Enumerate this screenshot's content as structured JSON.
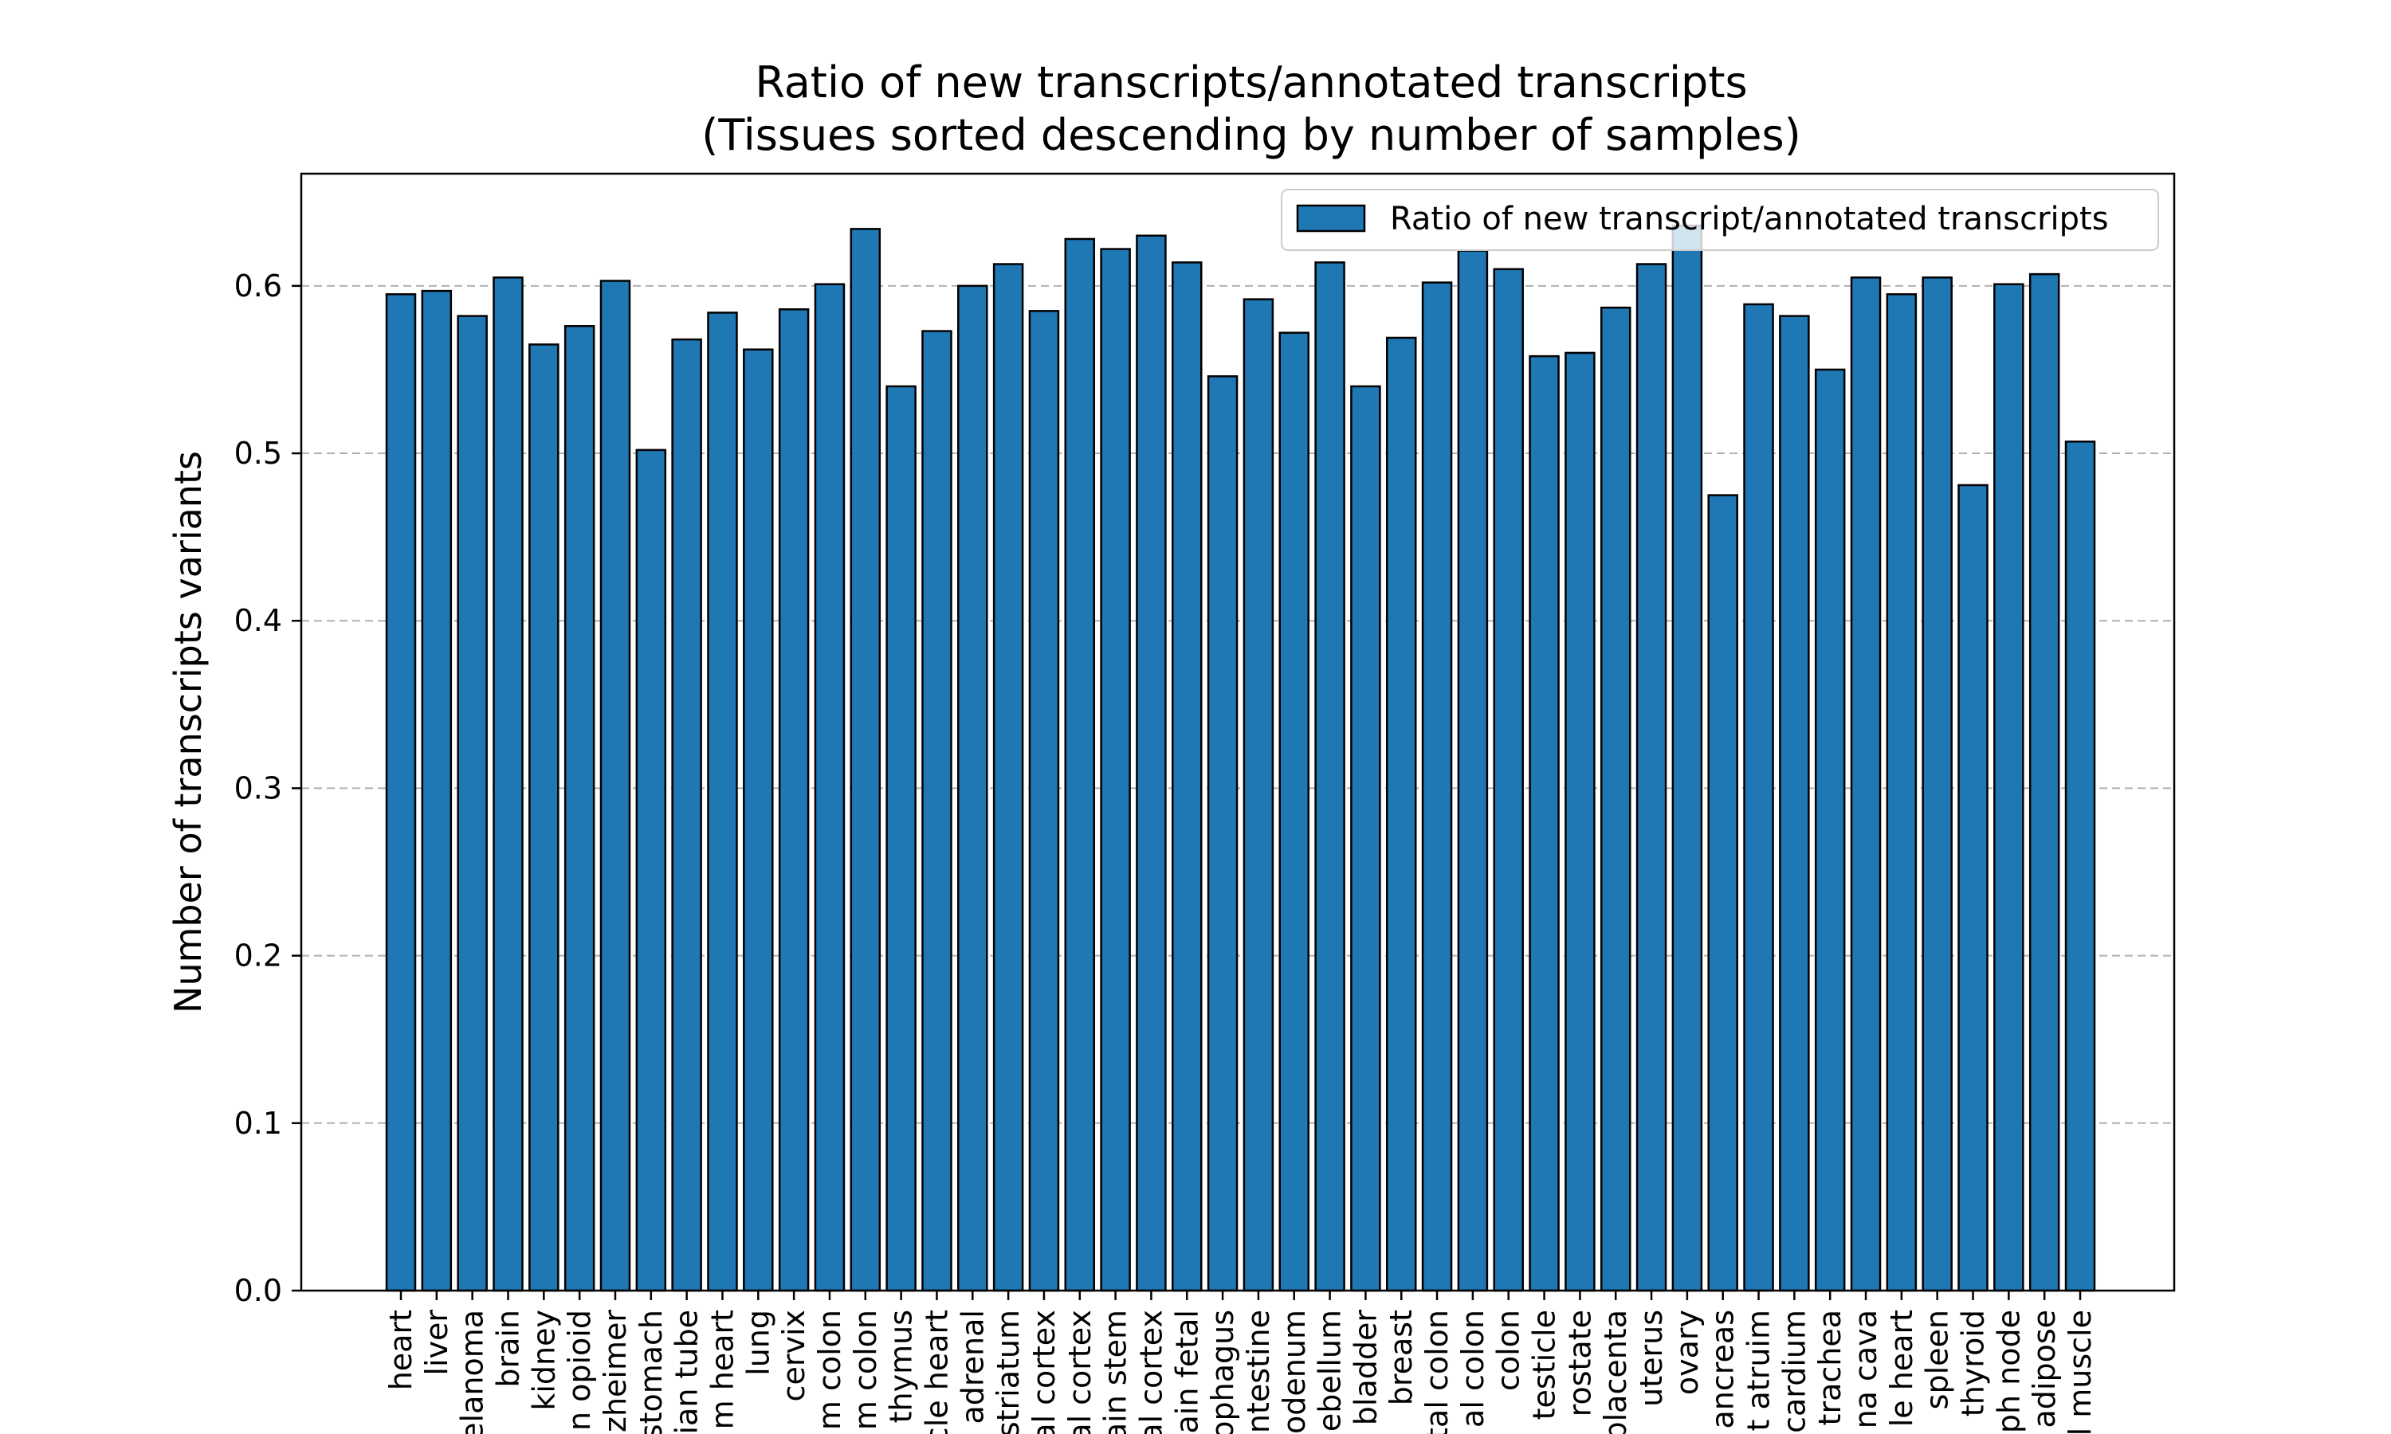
{
  "chart_data": {
    "type": "bar",
    "title": "Ratio of new transcripts/annotated transcripts",
    "subtitle": "(Tissues sorted descending by number of samples)",
    "xlabel": "",
    "ylabel": "Number of transcripts variants",
    "ylim": [
      0,
      0.667
    ],
    "yticks": [
      0.0,
      0.1,
      0.2,
      0.3,
      0.4,
      0.5,
      0.6
    ],
    "ytick_labels": [
      "0.0",
      "0.1",
      "0.2",
      "0.3",
      "0.4",
      "0.5",
      "0.6"
    ],
    "grid": "horizontal dashed",
    "legend_position": "top-right",
    "bar_color": "#1f77b4",
    "edge_color": "#000000",
    "categories": [
      "heart",
      "liver",
      "elanoma",
      "brain",
      "kidney",
      "n opioid",
      "zheimer",
      "stomach",
      "ian tube",
      "m heart",
      "lung",
      "cervix",
      "m colon",
      "m colon",
      "thymus",
      "cle heart",
      "adrenal",
      "striatum",
      "al cortex",
      "al cortex",
      "ain stem",
      "al cortex",
      "ain fetal",
      "ophagus",
      "ntestine",
      "odenum",
      "ebellum",
      "bladder",
      "breast",
      "tal colon",
      "al colon",
      "colon",
      "testicle",
      "rostate",
      "placenta",
      "uterus",
      "ovary",
      "ancreas",
      "t atruim",
      "cardium",
      "trachea",
      "na cava",
      "le heart",
      "spleen",
      "thyroid",
      "ph node",
      "adipose",
      "l muscle"
    ],
    "series": [
      {
        "name": "Ratio of new transcript/annotated transcripts",
        "values": [
          0.595,
          0.597,
          0.582,
          0.605,
          0.565,
          0.576,
          0.603,
          0.502,
          0.568,
          0.584,
          0.562,
          0.586,
          0.601,
          0.634,
          0.54,
          0.573,
          0.6,
          0.613,
          0.585,
          0.628,
          0.622,
          0.63,
          0.614,
          0.546,
          0.592,
          0.572,
          0.614,
          0.54,
          0.569,
          0.602,
          0.621,
          0.61,
          0.558,
          0.56,
          0.587,
          0.613,
          0.636,
          0.475,
          0.589,
          0.582,
          0.55,
          0.605,
          0.595,
          0.605,
          0.481,
          0.601,
          0.607,
          0.507
        ]
      }
    ]
  }
}
